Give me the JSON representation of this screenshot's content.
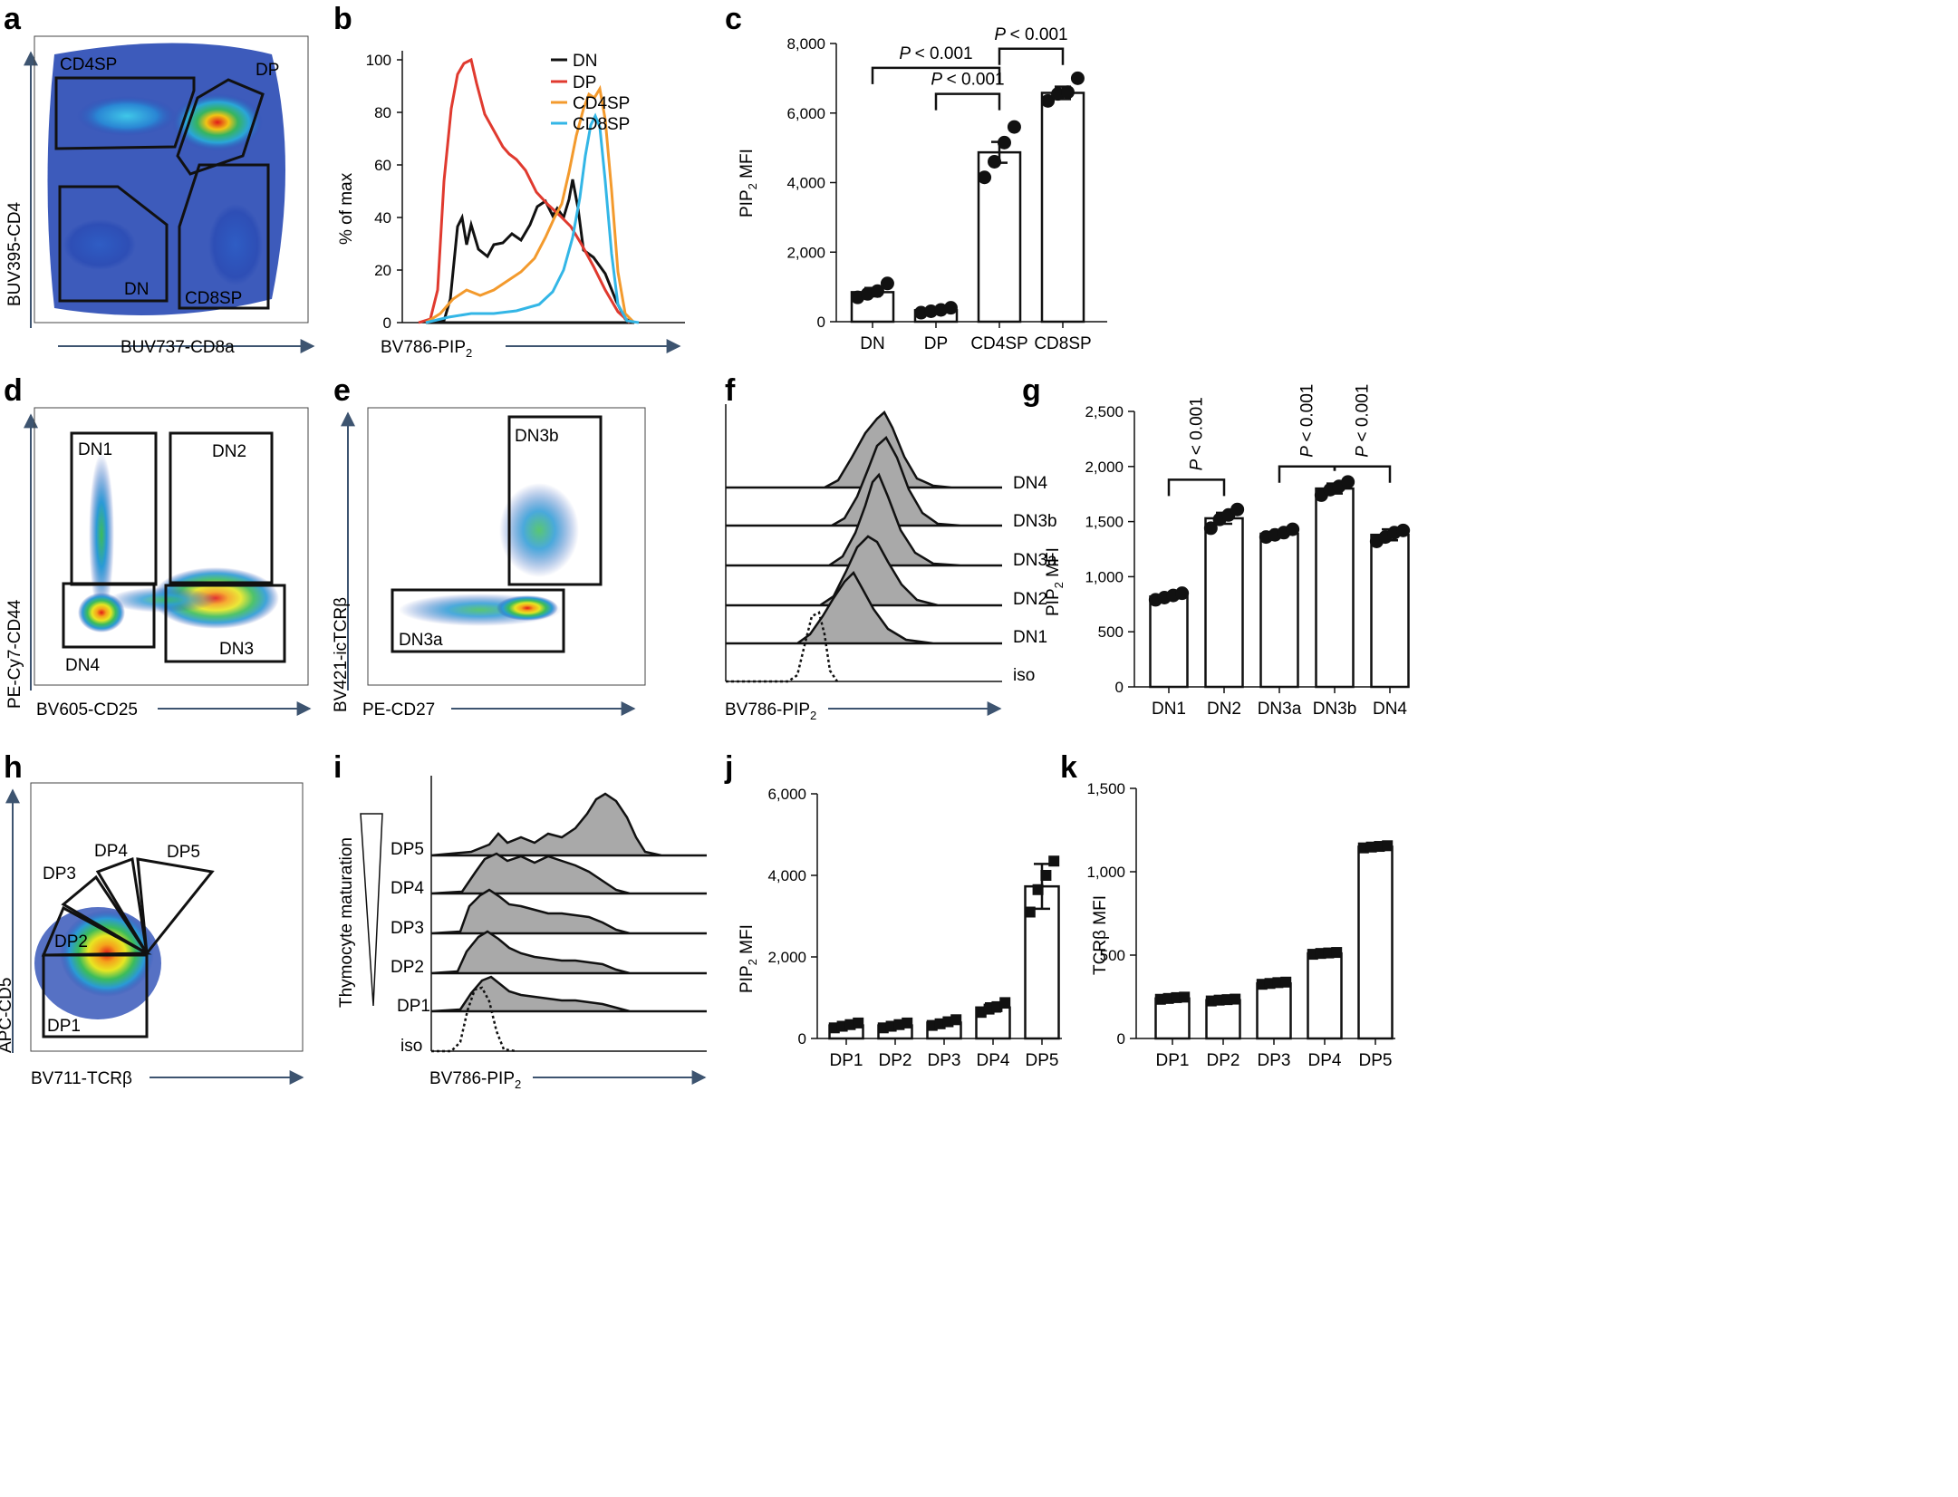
{
  "colors": {
    "axis_arrow": "#3d5470",
    "dn": "#111111",
    "dp": "#e03a2f",
    "cd4sp": "#f39a2d",
    "cd8sp": "#33b6e6",
    "hist_fill": "#a9a9a9",
    "flow_low": "#2c4db5",
    "flow_high": "#e21b17"
  },
  "panels": {
    "a": {
      "letter": "a",
      "xlabel": "BUV737-CD8a",
      "ylabel": "BUV395-CD4",
      "gates": [
        "CD4SP",
        "DP",
        "DN",
        "CD8SP"
      ]
    },
    "b": {
      "letter": "b",
      "xlabel": "BV786-PIP",
      "xlabel_sub": "2",
      "ylabel": "% of max",
      "yticks": [
        "0",
        "20",
        "40",
        "60",
        "80",
        "100"
      ],
      "legend": [
        "DN",
        "DP",
        "CD4SP",
        "CD8SP"
      ]
    },
    "d": {
      "letter": "d",
      "xlabel": "BV605-CD25",
      "ylabel": "PE-Cy7-CD44",
      "gates": [
        "DN1",
        "DN2",
        "DN4",
        "DN3"
      ]
    },
    "e": {
      "letter": "e",
      "xlabel": "PE-CD27",
      "ylabel": "BV421-icTCRβ",
      "gates": [
        "DN3b",
        "DN3a"
      ]
    },
    "f": {
      "letter": "f",
      "xlabel": "BV786-PIP",
      "xlabel_sub": "2",
      "rows": [
        "DN4",
        "DN3b",
        "DN3a",
        "DN2",
        "DN1",
        "iso"
      ]
    },
    "h": {
      "letter": "h",
      "xlabel": "BV711-TCRβ",
      "ylabel": "APC-CD5",
      "gates": [
        "DP5",
        "DP4",
        "DP3",
        "DP2",
        "DP1"
      ]
    },
    "i": {
      "letter": "i",
      "xlabel": "BV786-PIP",
      "xlabel_sub": "2",
      "side_label": "Thymocyte maturation",
      "rows": [
        "DP5",
        "DP4",
        "DP3",
        "DP2",
        "DP1",
        "iso"
      ]
    }
  },
  "chart_data": [
    {
      "id": "c",
      "letter": "c",
      "type": "bar",
      "categories": [
        "DN",
        "DP",
        "CD4SP",
        "CD8SP"
      ],
      "values": [
        850,
        330,
        4870,
        6580
      ],
      "errors": [
        120,
        50,
        300,
        180
      ],
      "points": [
        [
          700,
          800,
          880,
          1100
        ],
        [
          260,
          300,
          340,
          400
        ],
        [
          4150,
          4600,
          5150,
          5600
        ],
        [
          6350,
          6550,
          6600,
          7000
        ]
      ],
      "ylabel": "PIP",
      "ylabel_sub": "2",
      "ylabel_tail": " MFI",
      "ylim": [
        0,
        8000
      ],
      "yticks": [
        0,
        2000,
        4000,
        6000,
        8000
      ],
      "ytick_labels": [
        "0",
        "2,000",
        "4,000",
        "6,000",
        "8,000"
      ],
      "marker": "circle",
      "brackets": [
        {
          "a": 0,
          "b": 2,
          "y": 7300,
          "label": "< 0.001",
          "label_prefix": "P",
          "vertical": false
        },
        {
          "a": 1,
          "b": 2,
          "y": 6550,
          "label": "< 0.001",
          "label_prefix": "P",
          "vertical": false
        },
        {
          "a": 2,
          "b": 3,
          "y": 7850,
          "label": "< 0.001",
          "label_prefix": "P",
          "vertical": false
        }
      ]
    },
    {
      "id": "g",
      "letter": "g",
      "type": "bar",
      "categories": [
        "DN1",
        "DN2",
        "DN3a",
        "DN3b",
        "DN4"
      ],
      "values": [
        820,
        1530,
        1390,
        1800,
        1380
      ],
      "errors": [
        30,
        50,
        35,
        45,
        50
      ],
      "points": [
        [
          790,
          810,
          830,
          850
        ],
        [
          1440,
          1520,
          1560,
          1610
        ],
        [
          1360,
          1380,
          1400,
          1430
        ],
        [
          1740,
          1790,
          1820,
          1860
        ],
        [
          1320,
          1360,
          1400,
          1420
        ]
      ],
      "ylabel": "PIP",
      "ylabel_sub": "2",
      "ylabel_tail": " MFI",
      "ylim": [
        0,
        2500
      ],
      "yticks": [
        0,
        500,
        1000,
        1500,
        2000,
        2500
      ],
      "ytick_labels": [
        "0",
        "500",
        "1,000",
        "1,500",
        "2,000",
        "2,500"
      ],
      "marker": "circle",
      "brackets": [
        {
          "a": 0,
          "b": 1,
          "y": 1880,
          "label": "< 0.001",
          "label_prefix": "P",
          "vertical": true
        },
        {
          "a": 2,
          "b": 3,
          "y": 2000,
          "label": "< 0.001",
          "label_prefix": "P",
          "vertical": true
        },
        {
          "a": 3,
          "b": 4,
          "y": 2000,
          "label": "< 0.001",
          "label_prefix": "P",
          "vertical": true
        }
      ]
    },
    {
      "id": "j",
      "letter": "j",
      "type": "bar",
      "categories": [
        "DP1",
        "DP2",
        "DP3",
        "DP4",
        "DP5"
      ],
      "values": [
        320,
        320,
        390,
        760,
        3730
      ],
      "errors": [
        40,
        40,
        60,
        100,
        550
      ],
      "points": [
        [
          260,
          300,
          340,
          380
        ],
        [
          260,
          300,
          340,
          380
        ],
        [
          320,
          360,
          410,
          460
        ],
        [
          640,
          720,
          780,
          880
        ],
        [
          3100,
          3650,
          4000,
          4350
        ]
      ],
      "ylabel": "PIP",
      "ylabel_sub": "2",
      "ylabel_tail": " MFI",
      "ylim": [
        0,
        6000
      ],
      "yticks": [
        0,
        2000,
        4000,
        6000
      ],
      "ytick_labels": [
        "0",
        "2,000",
        "4,000",
        "6,000"
      ],
      "marker": "square",
      "brackets": []
    },
    {
      "id": "k",
      "letter": "k",
      "type": "bar",
      "categories": [
        "DP1",
        "DP2",
        "DP3",
        "DP4",
        "DP5"
      ],
      "values": [
        240,
        230,
        330,
        510,
        1150
      ],
      "errors": [
        8,
        8,
        10,
        8,
        10
      ],
      "points": [
        [
          235,
          240,
          245,
          248
        ],
        [
          225,
          230,
          233,
          236
        ],
        [
          325,
          330,
          335,
          338
        ],
        [
          505,
          510,
          513,
          516
        ],
        [
          1143,
          1148,
          1152,
          1156
        ]
      ],
      "ylabel": "TCRβ MFI",
      "ylim": [
        0,
        1500
      ],
      "yticks": [
        0,
        500,
        1000,
        1500
      ],
      "ytick_labels": [
        "0",
        "500",
        "1,000",
        "1,500"
      ],
      "marker": "square",
      "brackets": []
    }
  ]
}
